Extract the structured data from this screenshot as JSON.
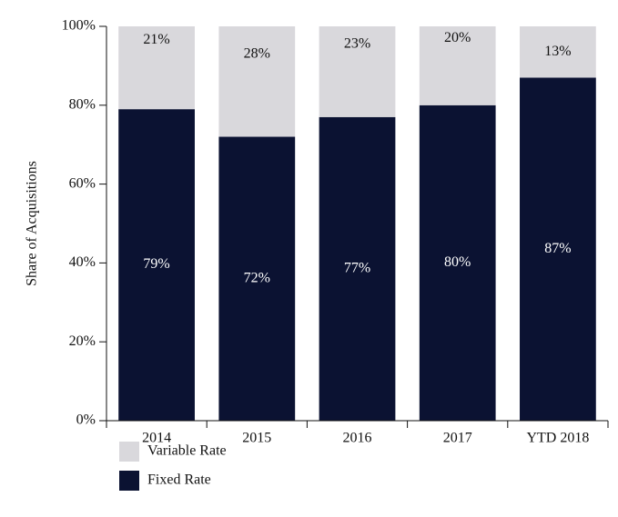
{
  "chart_data": {
    "type": "stacked-bar",
    "y_label": "Share of Acquisitions",
    "categories": [
      "2014",
      "2015",
      "2016",
      "2017",
      "YTD 2018"
    ],
    "series": [
      {
        "name": "Fixed Rate",
        "color": "#0b1232",
        "values": [
          79,
          72,
          77,
          80,
          87
        ],
        "value_labels": [
          "79%",
          "72%",
          "77%",
          "80%",
          "87%"
        ]
      },
      {
        "name": "Variable Rate",
        "color": "#d9d8dc",
        "values": [
          21,
          28,
          23,
          20,
          13
        ],
        "value_labels": [
          "21%",
          "28%",
          "23%",
          "20%",
          "13%"
        ]
      }
    ],
    "ylim": [
      0,
      100
    ],
    "yticks": [
      {
        "value": 0,
        "label": "0%"
      },
      {
        "value": 20,
        "label": "20%"
      },
      {
        "value": 40,
        "label": "40%"
      },
      {
        "value": 60,
        "label": "60%"
      },
      {
        "value": 80,
        "label": "80%"
      },
      {
        "value": 100,
        "label": "100%"
      }
    ]
  }
}
